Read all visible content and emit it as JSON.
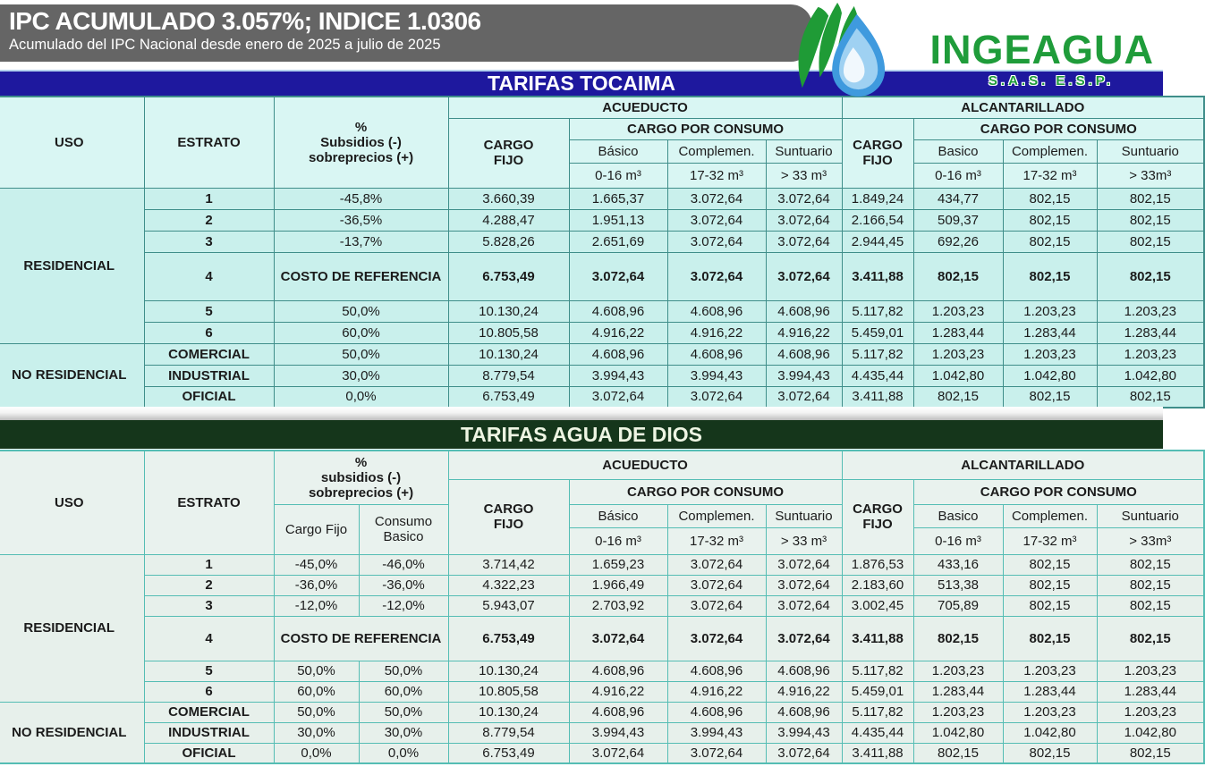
{
  "banner": {
    "title": "IPC ACUMULADO 3.057%; INDICE 1.0306",
    "subtitle": "Acumulado del IPC Nacional desde enero de 2025 a julio de 2025"
  },
  "logo": {
    "name": "INGEAGUA",
    "suffix": "S.A.S. E.S.P.",
    "green": "#1f9c3a",
    "blue": "#3f9ade"
  },
  "labels": {
    "uso": "USO",
    "estrato": "ESTRATO",
    "acueducto": "ACUEDUCTO",
    "alcantarillado": "ALCANTARILLADO",
    "cargo_fijo": "CARGO\nFIJO",
    "cargo_consumo": "CARGO POR CONSUMO",
    "basico_acc": "Básico",
    "basico": "Basico",
    "complemen": "Complemen.",
    "suntuario": "Suntuario",
    "rango_basico": "0-16 m³",
    "rango_complemen": "17-32 m³",
    "rango_suntuario": "> 33 m³",
    "rango_suntuario_alc": "> 33m³"
  },
  "tocaima": {
    "title": "TARIFAS TOCAIMA",
    "subsidios": "%\nSubsidios (-)\nsobreprecios (+)",
    "groups": [
      {
        "uso": "RESIDENCIAL",
        "rows": [
          {
            "estrato": "1",
            "pct": [
              "-45,8%"
            ],
            "values": [
              "3.660,39",
              "1.665,37",
              "3.072,64",
              "3.072,64",
              "1.849,24",
              "434,77",
              "802,15",
              "802,15"
            ]
          },
          {
            "estrato": "2",
            "pct": [
              "-36,5%"
            ],
            "values": [
              "4.288,47",
              "1.951,13",
              "3.072,64",
              "3.072,64",
              "2.166,54",
              "509,37",
              "802,15",
              "802,15"
            ]
          },
          {
            "estrato": "3",
            "pct": [
              "-13,7%"
            ],
            "values": [
              "5.828,26",
              "2.651,69",
              "3.072,64",
              "3.072,64",
              "2.944,45",
              "692,26",
              "802,15",
              "802,15"
            ]
          },
          {
            "estrato": "4",
            "costo": "COSTO DE REFERENCIA",
            "bold": true,
            "tall": true,
            "values": [
              "6.753,49",
              "3.072,64",
              "3.072,64",
              "3.072,64",
              "3.411,88",
              "802,15",
              "802,15",
              "802,15"
            ]
          },
          {
            "estrato": "5",
            "pct": [
              "50,0%"
            ],
            "values": [
              "10.130,24",
              "4.608,96",
              "4.608,96",
              "4.608,96",
              "5.117,82",
              "1.203,23",
              "1.203,23",
              "1.203,23"
            ]
          },
          {
            "estrato": "6",
            "pct": [
              "60,0%"
            ],
            "values": [
              "10.805,58",
              "4.916,22",
              "4.916,22",
              "4.916,22",
              "5.459,01",
              "1.283,44",
              "1.283,44",
              "1.283,44"
            ]
          }
        ]
      },
      {
        "uso": "NO RESIDENCIAL",
        "rows": [
          {
            "estrato": "COMERCIAL",
            "pct": [
              "50,0%"
            ],
            "values": [
              "10.130,24",
              "4.608,96",
              "4.608,96",
              "4.608,96",
              "5.117,82",
              "1.203,23",
              "1.203,23",
              "1.203,23"
            ]
          },
          {
            "estrato": "INDUSTRIAL",
            "pct": [
              "30,0%"
            ],
            "values": [
              "8.779,54",
              "3.994,43",
              "3.994,43",
              "3.994,43",
              "4.435,44",
              "1.042,80",
              "1.042,80",
              "1.042,80"
            ]
          },
          {
            "estrato": "OFICIAL",
            "pct": [
              "0,0%"
            ],
            "values": [
              "6.753,49",
              "3.072,64",
              "3.072,64",
              "3.072,64",
              "3.411,88",
              "802,15",
              "802,15",
              "802,15"
            ]
          }
        ]
      }
    ]
  },
  "agua": {
    "title": "TARIFAS AGUA DE DIOS",
    "subsidios": "%\nsubsidios (-)\nsobreprecios (+)",
    "sub_cargo_fijo": "Cargo Fijo",
    "sub_consumo_basico": "Consumo\nBasico",
    "groups": [
      {
        "uso": "RESIDENCIAL",
        "rows": [
          {
            "estrato": "1",
            "pct": [
              "-45,0%",
              "-46,0%"
            ],
            "values": [
              "3.714,42",
              "1.659,23",
              "3.072,64",
              "3.072,64",
              "1.876,53",
              "433,16",
              "802,15",
              "802,15"
            ]
          },
          {
            "estrato": "2",
            "pct": [
              "-36,0%",
              "-36,0%"
            ],
            "values": [
              "4.322,23",
              "1.966,49",
              "3.072,64",
              "3.072,64",
              "2.183,60",
              "513,38",
              "802,15",
              "802,15"
            ]
          },
          {
            "estrato": "3",
            "pct": [
              "-12,0%",
              "-12,0%"
            ],
            "values": [
              "5.943,07",
              "2.703,92",
              "3.072,64",
              "3.072,64",
              "3.002,45",
              "705,89",
              "802,15",
              "802,15"
            ]
          },
          {
            "estrato": "4",
            "costo": "COSTO DE REFERENCIA",
            "bold": true,
            "tall": true,
            "values": [
              "6.753,49",
              "3.072,64",
              "3.072,64",
              "3.072,64",
              "3.411,88",
              "802,15",
              "802,15",
              "802,15"
            ]
          },
          {
            "estrato": "5",
            "pct": [
              "50,0%",
              "50,0%"
            ],
            "values": [
              "10.130,24",
              "4.608,96",
              "4.608,96",
              "4.608,96",
              "5.117,82",
              "1.203,23",
              "1.203,23",
              "1.203,23"
            ]
          },
          {
            "estrato": "6",
            "pct": [
              "60,0%",
              "60,0%"
            ],
            "values": [
              "10.805,58",
              "4.916,22",
              "4.916,22",
              "4.916,22",
              "5.459,01",
              "1.283,44",
              "1.283,44",
              "1.283,44"
            ]
          }
        ]
      },
      {
        "uso": "NO RESIDENCIAL",
        "rows": [
          {
            "estrato": "COMERCIAL",
            "pct": [
              "50,0%",
              "50,0%"
            ],
            "values": [
              "10.130,24",
              "4.608,96",
              "4.608,96",
              "4.608,96",
              "5.117,82",
              "1.203,23",
              "1.203,23",
              "1.203,23"
            ]
          },
          {
            "estrato": "INDUSTRIAL",
            "pct": [
              "30,0%",
              "30,0%"
            ],
            "values": [
              "8.779,54",
              "3.994,43",
              "3.994,43",
              "3.994,43",
              "4.435,44",
              "1.042,80",
              "1.042,80",
              "1.042,80"
            ]
          },
          {
            "estrato": "OFICIAL",
            "pct": [
              "0,0%",
              "0,0%"
            ],
            "values": [
              "6.753,49",
              "3.072,64",
              "3.072,64",
              "3.072,64",
              "3.411,88",
              "802,15",
              "802,15",
              "802,15"
            ]
          }
        ]
      }
    ]
  }
}
